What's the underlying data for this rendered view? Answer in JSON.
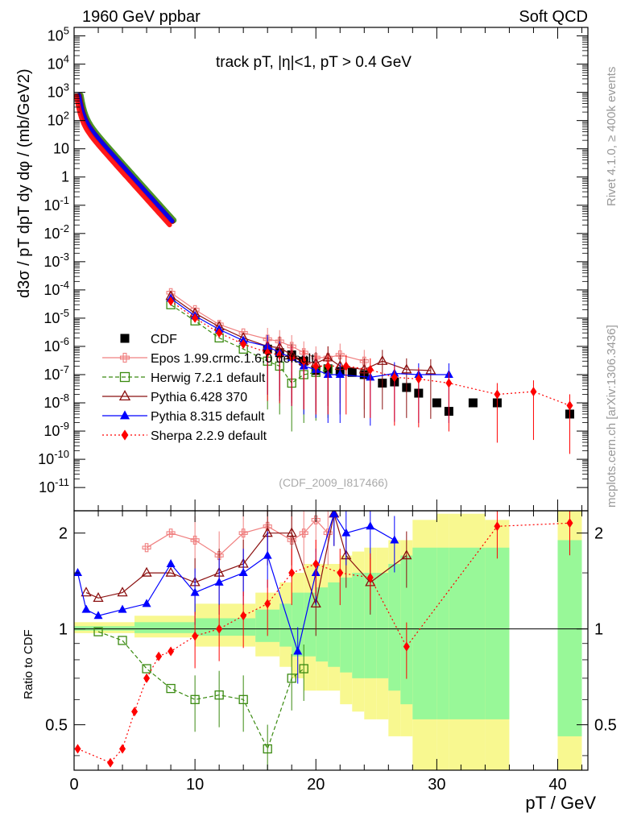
{
  "header": {
    "left": "1960 GeV ppbar",
    "right": "Soft QCD",
    "side_top": "Rivet 4.1.0, ≥ 400k events",
    "side_bottom": "mcplots.cern.ch [arXiv:1306.3436]"
  },
  "chart_data": {
    "type": "scatter",
    "title": "track pT, |η|<1, pT > 0.4 GeV",
    "watermark": "(CDF_2009_I817466)",
    "xlabel": "pT / GeV",
    "ylabel_top": "d3σ / pT dpT dy dφ / (mb/GeV2)",
    "ylabel_bottom": "Ratio to CDF",
    "xlim": [
      0,
      42.5
    ],
    "ylim_top": [
      1.5e-12,
      200000.0
    ],
    "ylim_bottom": [
      0.36,
      2.35
    ],
    "x_ticks": [
      "0",
      "10",
      "20",
      "30",
      "40"
    ],
    "y_ticks_top": [
      "10-11",
      "10-10",
      "10-9",
      "10-8",
      "10-7",
      "10-6",
      "10-5",
      "10-4",
      "10-3",
      "10-2",
      "10-1",
      "1",
      "10",
      "102",
      "103",
      "104",
      "105"
    ],
    "y_ticks_bottom": [
      "0.5",
      "1",
      "2"
    ],
    "legend": [
      {
        "name": "CDF",
        "color": "#000000",
        "marker": "square-filled",
        "line": "none"
      },
      {
        "name": "Epos 1.99.crmc.1.6.0 default",
        "color": "#f08080",
        "marker": "cross-open",
        "line": "solid"
      },
      {
        "name": "Herwig 7.2.1 default",
        "color": "#3a8a10",
        "marker": "square-open",
        "line": "dashed"
      },
      {
        "name": "Pythia 6.428 370",
        "color": "#8b1010",
        "marker": "triangle-open",
        "line": "solid"
      },
      {
        "name": "Pythia 8.315 default",
        "color": "#0000ff",
        "marker": "triangle-filled",
        "line": "solid"
      },
      {
        "name": "Sherpa 2.2.9 default",
        "color": "#ff0000",
        "marker": "diamond-filled",
        "line": "dotted"
      }
    ],
    "series": [
      {
        "name": "CDF",
        "x": [
          16,
          17,
          18,
          19,
          20,
          21,
          22,
          23,
          24,
          25.5,
          26.5,
          27.5,
          28.5,
          30,
          31,
          33,
          35,
          41
        ],
        "y": [
          8e-07,
          6e-07,
          5e-07,
          3e-07,
          1.4e-07,
          1.6e-07,
          1.3e-07,
          1.2e-07,
          1e-07,
          5e-08,
          5.5e-08,
          3.5e-08,
          2.2e-08,
          1e-08,
          5e-09,
          1e-08,
          1e-08,
          4e-09
        ]
      },
      {
        "name": "Epos 1.99.crmc.1.6.0 default",
        "x": [
          8,
          10,
          12,
          14,
          16,
          17,
          18,
          19,
          20,
          21,
          22,
          24
        ],
        "y": [
          8e-05,
          2e-05,
          6e-06,
          3e-06,
          1.8e-06,
          1.5e-06,
          1e-06,
          6e-07,
          4e-07,
          4e-07,
          5e-07,
          3e-07
        ]
      },
      {
        "name": "Herwig 7.2.1 default",
        "x": [
          8,
          10,
          12,
          14,
          16,
          17,
          18,
          19,
          20,
          21
        ],
        "y": [
          3e-05,
          8e-06,
          2e-06,
          8e-07,
          3e-07,
          2e-07,
          5e-08,
          1e-07,
          1.2e-07,
          1.5e-07
        ]
      },
      {
        "name": "Pythia 6.428 370",
        "x": [
          8,
          10,
          12,
          14,
          16,
          17,
          18,
          19,
          20,
          21,
          22,
          24,
          25.5,
          27.5,
          29.5
        ],
        "y": [
          6e-05,
          1.5e-05,
          5e-06,
          2e-06,
          1e-06,
          9e-07,
          5e-07,
          3e-07,
          2.5e-07,
          4e-07,
          2e-07,
          1.5e-07,
          3e-07,
          1.5e-07,
          1.4e-07
        ]
      },
      {
        "name": "Pythia 8.315 default",
        "x": [
          8,
          10,
          12,
          14,
          16,
          17,
          18,
          19,
          20,
          21,
          22,
          24.5,
          26.5,
          28.5,
          31
        ],
        "y": [
          5e-05,
          1.2e-05,
          4e-06,
          1.6e-06,
          1e-06,
          6e-07,
          4e-07,
          2e-07,
          1.5e-07,
          1e-07,
          1e-07,
          8e-08,
          1.1e-07,
          1e-07,
          1e-07
        ]
      },
      {
        "name": "Sherpa 2.2.9 default",
        "x": [
          8,
          10,
          12,
          14,
          16,
          17,
          18,
          19,
          20,
          21,
          22.5,
          24.5,
          26.5,
          28.5,
          31,
          35,
          38,
          41
        ],
        "y": [
          4e-05,
          1e-05,
          3e-06,
          1.2e-06,
          6e-07,
          5e-07,
          4e-07,
          3e-07,
          2e-07,
          2e-07,
          2e-07,
          1.5e-07,
          8e-08,
          7e-08,
          5e-08,
          2e-08,
          2.5e-08,
          8e-09
        ]
      }
    ],
    "ratio_series": [
      {
        "name": "Epos 1.99.crmc.1.6.0 default",
        "x": [
          6,
          8,
          10,
          12,
          14,
          16,
          18,
          19,
          20,
          21
        ],
        "y": [
          1.8,
          2.0,
          1.9,
          1.7,
          2.0,
          2.1,
          1.9,
          2.0,
          2.2,
          2.0
        ]
      },
      {
        "name": "Herwig 7.2.1 default",
        "x": [
          2,
          4,
          6,
          8,
          10,
          12,
          14,
          16,
          18,
          19
        ],
        "y": [
          0.98,
          0.92,
          0.75,
          0.65,
          0.6,
          0.62,
          0.6,
          0.42,
          0.7,
          0.75
        ]
      },
      {
        "name": "Pythia 6.428 370",
        "x": [
          1,
          2,
          4,
          6,
          8,
          10,
          12,
          14,
          16,
          18,
          20,
          21.5,
          22.5,
          24.5,
          27.5
        ],
        "y": [
          1.3,
          1.25,
          1.3,
          1.5,
          1.5,
          1.4,
          1.5,
          1.6,
          2.0,
          2.0,
          1.2,
          2.3,
          1.7,
          1.4,
          1.7
        ]
      },
      {
        "name": "Pythia 8.315 default",
        "x": [
          0.3,
          1,
          2,
          4,
          6,
          8,
          10,
          12,
          14,
          16,
          18.5,
          20,
          21.5,
          22.5,
          24.5,
          26.5
        ],
        "y": [
          1.5,
          1.15,
          1.1,
          1.15,
          1.2,
          1.6,
          1.3,
          1.4,
          1.5,
          1.7,
          0.85,
          1.5,
          2.3,
          2.0,
          2.1,
          1.9
        ]
      },
      {
        "name": "Sherpa 2.2.9 default",
        "x": [
          0.3,
          3,
          4,
          5,
          6,
          7,
          8,
          10,
          12,
          14,
          16,
          18,
          20,
          22,
          24.5,
          27.5,
          35,
          41
        ],
        "y": [
          0.42,
          0.38,
          0.42,
          0.55,
          0.7,
          0.82,
          0.85,
          0.95,
          1.0,
          1.1,
          1.2,
          1.5,
          1.6,
          1.5,
          1.45,
          0.88,
          2.1,
          2.15
        ]
      }
    ],
    "uncertainty_bands": {
      "inner_color": "#98f898",
      "outer_color": "#f8f890",
      "bins_lo": [
        0,
        5,
        10,
        15,
        17,
        18,
        19,
        20,
        21,
        22,
        23,
        24,
        25,
        26,
        27,
        28,
        30,
        31,
        34,
        36,
        40,
        42
      ],
      "bins_hi": [
        5,
        10,
        15,
        17,
        18,
        19,
        20,
        21,
        22,
        23,
        24,
        25,
        26,
        27,
        28,
        30,
        31,
        34,
        36,
        40,
        42,
        42.5
      ],
      "inner": [
        0.02,
        0.05,
        0.08,
        0.15,
        0.2,
        0.3,
        0.3,
        0.35,
        0.4,
        0.45,
        0.5,
        0.5,
        0.5,
        0.6,
        0.7,
        0.8,
        0.8,
        0.8,
        0.8,
        0,
        0.9,
        0
      ],
      "outer": [
        0.05,
        0.1,
        0.2,
        0.3,
        0.4,
        0.5,
        0.6,
        0.6,
        0.6,
        0.7,
        0.75,
        0.8,
        0.8,
        0.9,
        0.9,
        1.2,
        1.3,
        1.3,
        1.2,
        0,
        1.4,
        0
      ]
    }
  }
}
